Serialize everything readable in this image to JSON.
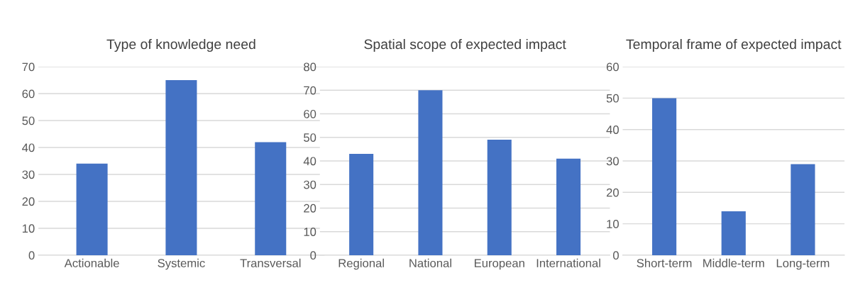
{
  "chart_data": [
    {
      "type": "bar",
      "title": "Type of knowledge need",
      "categories": [
        "Actionable",
        "Systemic",
        "Transversal"
      ],
      "values": [
        34,
        65,
        42
      ],
      "color": "#4472c4",
      "ylim": [
        0,
        70
      ],
      "yticks": [
        0,
        10,
        20,
        30,
        40,
        50,
        60,
        70
      ],
      "grid": "y",
      "legend": false
    },
    {
      "type": "bar",
      "title": "Spatial scope of expected impact",
      "categories": [
        "Regional",
        "National",
        "European",
        "International"
      ],
      "values": [
        43,
        70,
        49,
        41
      ],
      "color": "#4472c4",
      "ylim": [
        0,
        80
      ],
      "yticks": [
        0,
        10,
        20,
        30,
        40,
        50,
        60,
        70,
        80
      ],
      "grid": "y",
      "legend": false
    },
    {
      "type": "bar",
      "title": "Temporal frame of expected impact",
      "categories": [
        "Short-term",
        "Middle-term",
        "Long-term"
      ],
      "values": [
        50,
        14,
        29
      ],
      "color": "#4472c4",
      "ylim": [
        0,
        60
      ],
      "yticks": [
        0,
        10,
        20,
        30,
        40,
        50,
        60
      ],
      "grid": "y",
      "legend": false
    }
  ]
}
